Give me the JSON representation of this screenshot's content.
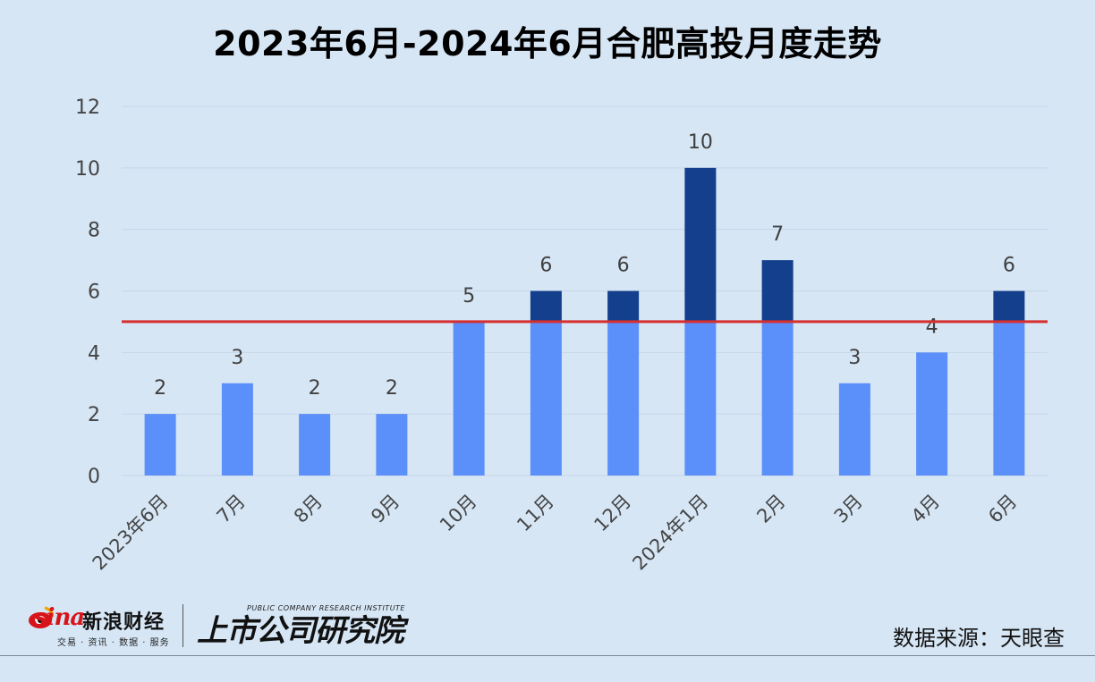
{
  "chart_data": {
    "type": "bar",
    "title": "2023年6月-2024年6月合肥高投月度走势",
    "categories": [
      "2023年6月",
      "7月",
      "8月",
      "9月",
      "10月",
      "11月",
      "12月",
      "2024年1月",
      "2月",
      "3月",
      "4月",
      "6月"
    ],
    "values": [
      2,
      3,
      2,
      2,
      5,
      6,
      6,
      10,
      7,
      3,
      4,
      6
    ],
    "data_labels": [
      "2",
      "3",
      "2",
      "2",
      "5",
      "6",
      "6",
      "10",
      "7",
      "3",
      "4",
      "6"
    ],
    "ylim": [
      0,
      12
    ],
    "yticks": [
      "0",
      "2",
      "4",
      "6",
      "8",
      "10",
      "12"
    ],
    "reference_line": 5,
    "grid": true,
    "legend": "none",
    "colors": {
      "bar_below_line": "#5b8ff9",
      "bar_above_line": "#133f8c",
      "reference_line": "#d62f2f",
      "gridline": "#c5d6e6"
    }
  },
  "footer": {
    "sina_logo_text": "sina",
    "sina_brand": "新浪财经",
    "sina_tagline": "交易 · 资讯 · 数据 · 服务",
    "institute_name": "上市公司研究院",
    "institute_en": "PUBLIC COMPANY RESEARCH INSTITUTE",
    "source": "数据来源：天眼查"
  }
}
